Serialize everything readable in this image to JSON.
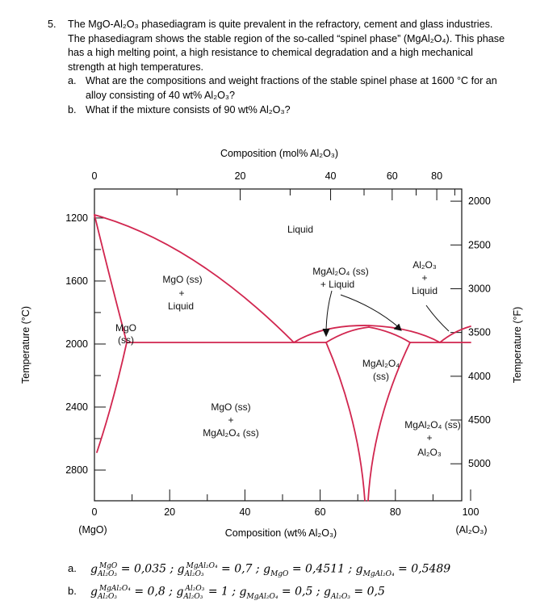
{
  "question": {
    "number": "5.",
    "intro": [
      "The MgO-Al₂O₃ phasediagram is quite prevalent in the refractory, cement and glass industries.",
      "The phasediagram shows the stable region of the so-called “spinel phase” (MgAl₂O₄). This phase",
      "has a high melting point, a high resistance to chemical degradation and a high mechanical",
      "strength at high temperatures."
    ],
    "part_a": {
      "label": "a.",
      "lines": [
        "What are the compositions and weight fractions of the stable spinel phase at 1600 °C for an",
        "alloy consisting of 40 wt% Al₂O₃?"
      ]
    },
    "part_b": {
      "label": "b.",
      "lines": [
        "What if the mixture consists of 90 wt% Al₂O₃?"
      ]
    }
  },
  "chart_data": {
    "type": "phase_diagram",
    "top_axis_label": "Composition (mol% Al₂O₃)",
    "top_ticks": [
      "0",
      "20",
      "40",
      "60",
      "80"
    ],
    "bottom_axis_label": "Composition (wt% Al₂O₃)",
    "bottom_ticks": [
      "0",
      "20",
      "40",
      "60",
      "80",
      "100"
    ],
    "bottom_end_labels": {
      "left": "(MgO)",
      "right": "(Al₂O₃)"
    },
    "left_axis_label": "Temperature (°C)",
    "left_ticks": [
      "2800",
      "2400",
      "2000",
      "1600",
      "1200"
    ],
    "right_axis_label": "Temperature (°F)",
    "right_ticks": [
      "5000",
      "4500",
      "4000",
      "3500",
      "3000",
      "2500",
      "2000"
    ],
    "x_range_wt": [
      0,
      100
    ],
    "y_range_C": [
      1000,
      2900
    ],
    "eutectic_temperature_C": 1990,
    "regions": [
      {
        "label": [
          "Liquid"
        ]
      },
      {
        "label": [
          "MgO (ss)",
          "+",
          "Liquid"
        ]
      },
      {
        "label": [
          "MgO",
          "(ss)"
        ]
      },
      {
        "label": [
          "MgAl₂O₄ (ss)",
          "+ Liquid"
        ]
      },
      {
        "label": [
          "Al₂O₃",
          "+",
          "Liquid"
        ]
      },
      {
        "label": [
          "MgAl₂O₄",
          "(ss)"
        ]
      },
      {
        "label": [
          "MgO (ss)",
          "+",
          "MgAl₂O₄ (ss)"
        ]
      },
      {
        "label": [
          "MgAl₂O₄ (ss)",
          "+",
          "Al₂O₃"
        ]
      }
    ],
    "line_color": "#d1264f"
  },
  "answers": {
    "a": {
      "label": "a.",
      "g1": "= 0,035 ;",
      "g2": "= 0,7 ;",
      "g3": "= 0,4511 ;",
      "g4": "= 0,5489"
    },
    "b": {
      "label": "b.",
      "g1": "= 0,8 ;",
      "g2": "= 1 ;",
      "g3": "= 0,5 ;",
      "g4": "= 0,5"
    }
  }
}
